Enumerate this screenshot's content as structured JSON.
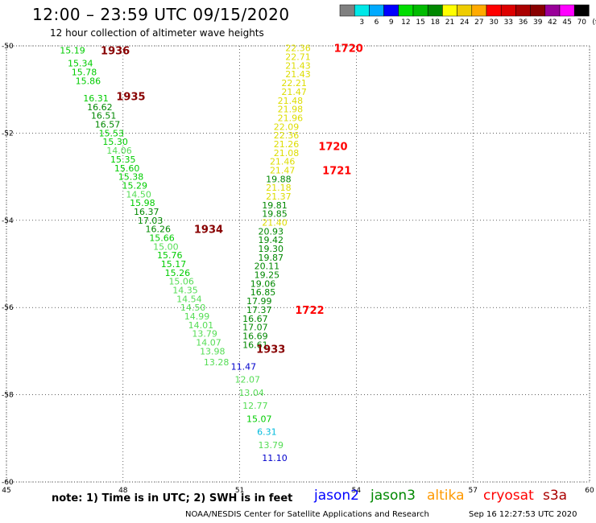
{
  "header": {
    "title": "12:00 – 23:59 UTC 09/15/2020",
    "subtitle": "12 hour collection of altimeter wave heights"
  },
  "colorbar": {
    "unit": "(ft)",
    "bins": [
      {
        "label": "",
        "color": "#808080"
      },
      {
        "label": "3",
        "color": "#00e8e8"
      },
      {
        "label": "6",
        "color": "#00aaff"
      },
      {
        "label": "9",
        "color": "#0000ff"
      },
      {
        "label": "12",
        "color": "#00dd00"
      },
      {
        "label": "15",
        "color": "#00bb00"
      },
      {
        "label": "18",
        "color": "#008800"
      },
      {
        "label": "21",
        "color": "#ffff00"
      },
      {
        "label": "24",
        "color": "#eecc00"
      },
      {
        "label": "27",
        "color": "#ffaa00"
      },
      {
        "label": "30",
        "color": "#ff0000"
      },
      {
        "label": "33",
        "color": "#dd0000"
      },
      {
        "label": "36",
        "color": "#aa0000"
      },
      {
        "label": "39",
        "color": "#880000"
      },
      {
        "label": "42",
        "color": "#990099"
      },
      {
        "label": "45",
        "color": "#ff00ff"
      },
      {
        "label": "70",
        "color": "#000000"
      }
    ]
  },
  "colors": {
    "c3": "#55dd55",
    "c6": "#00cc00",
    "c9": "#008800",
    "cY": "#dddd00",
    "cR": "#ff0000",
    "cM": "#880000",
    "cB": "#0000cc",
    "cC": "#00bbdd"
  },
  "axes": {
    "lon_ticks": [
      45,
      48,
      51,
      54,
      57,
      60
    ],
    "lat_ticks": [
      -50,
      -52,
      -54,
      -56,
      -58,
      -60
    ],
    "lon_range": [
      45,
      60
    ],
    "lat_range": [
      -50,
      -60
    ]
  },
  "chart_data": {
    "type": "scatter",
    "tracks": [
      {
        "name": "track-1",
        "points": [
          {
            "lat": -50.1,
            "lon": 46.7,
            "v": "15.19",
            "c": "c6"
          },
          {
            "lat": -50.4,
            "lon": 46.9,
            "v": "15.34",
            "c": "c6"
          },
          {
            "lat": -50.6,
            "lon": 47.0,
            "v": "15.78",
            "c": "c6"
          },
          {
            "lat": -50.8,
            "lon": 47.1,
            "v": "15.86",
            "c": "c6"
          },
          {
            "lat": -51.2,
            "lon": 47.3,
            "v": "16.31",
            "c": "c6"
          },
          {
            "lat": -51.4,
            "lon": 47.4,
            "v": "16.62",
            "c": "c9"
          },
          {
            "lat": -51.6,
            "lon": 47.5,
            "v": "16.51",
            "c": "c9"
          },
          {
            "lat": -51.8,
            "lon": 47.6,
            "v": "16.57",
            "c": "c9"
          },
          {
            "lat": -52.0,
            "lon": 47.7,
            "v": "15.53",
            "c": "c6"
          },
          {
            "lat": -52.2,
            "lon": 47.8,
            "v": "15.30",
            "c": "c6"
          },
          {
            "lat": -52.4,
            "lon": 47.9,
            "v": "14.06",
            "c": "c3"
          },
          {
            "lat": -52.6,
            "lon": 48.0,
            "v": "15.35",
            "c": "c6"
          },
          {
            "lat": -52.8,
            "lon": 48.1,
            "v": "15.60",
            "c": "c6"
          },
          {
            "lat": -53.0,
            "lon": 48.2,
            "v": "15.38",
            "c": "c6"
          },
          {
            "lat": -53.2,
            "lon": 48.3,
            "v": "15.29",
            "c": "c6"
          },
          {
            "lat": -53.4,
            "lon": 48.4,
            "v": "14.50",
            "c": "c3"
          },
          {
            "lat": -53.6,
            "lon": 48.5,
            "v": "15.98",
            "c": "c6"
          },
          {
            "lat": -53.8,
            "lon": 48.6,
            "v": "16.37",
            "c": "c9"
          },
          {
            "lat": -54.0,
            "lon": 48.7,
            "v": "17.03",
            "c": "c9"
          },
          {
            "lat": -54.2,
            "lon": 48.9,
            "v": "16.26",
            "c": "c9"
          },
          {
            "lat": -54.4,
            "lon": 49.0,
            "v": "15.66",
            "c": "c6"
          },
          {
            "lat": -54.6,
            "lon": 49.1,
            "v": "15.00",
            "c": "c3"
          },
          {
            "lat": -54.8,
            "lon": 49.2,
            "v": "15.76",
            "c": "c6"
          },
          {
            "lat": -55.0,
            "lon": 49.3,
            "v": "15.17",
            "c": "c6"
          },
          {
            "lat": -55.2,
            "lon": 49.4,
            "v": "15.26",
            "c": "c6"
          },
          {
            "lat": -55.4,
            "lon": 49.5,
            "v": "15.06",
            "c": "c3"
          },
          {
            "lat": -55.6,
            "lon": 49.6,
            "v": "14.35",
            "c": "c3"
          },
          {
            "lat": -55.8,
            "lon": 49.7,
            "v": "14.54",
            "c": "c3"
          },
          {
            "lat": -56.0,
            "lon": 49.8,
            "v": "14.50",
            "c": "c3"
          },
          {
            "lat": -56.2,
            "lon": 49.9,
            "v": "14.99",
            "c": "c3"
          },
          {
            "lat": -56.4,
            "lon": 50.0,
            "v": "14.01",
            "c": "c3"
          },
          {
            "lat": -56.6,
            "lon": 50.1,
            "v": "13.79",
            "c": "c3"
          },
          {
            "lat": -56.8,
            "lon": 50.2,
            "v": "14.07",
            "c": "c3"
          },
          {
            "lat": -57.0,
            "lon": 50.3,
            "v": "13.98",
            "c": "c3"
          },
          {
            "lat": -57.25,
            "lon": 50.4,
            "v": "13.28",
            "c": "c3"
          }
        ]
      },
      {
        "name": "track-2",
        "points": [
          {
            "lat": -50.05,
            "lon": 52.5,
            "v": "22.36",
            "c": "cY"
          },
          {
            "lat": -50.25,
            "lon": 52.5,
            "v": "22.71",
            "c": "cY"
          },
          {
            "lat": -50.45,
            "lon": 52.5,
            "v": "21.43",
            "c": "cY"
          },
          {
            "lat": -50.65,
            "lon": 52.5,
            "v": "21.43",
            "c": "cY"
          },
          {
            "lat": -50.85,
            "lon": 52.4,
            "v": "22.21",
            "c": "cY"
          },
          {
            "lat": -51.05,
            "lon": 52.4,
            "v": "21.47",
            "c": "cY"
          },
          {
            "lat": -51.25,
            "lon": 52.3,
            "v": "21.48",
            "c": "cY"
          },
          {
            "lat": -51.45,
            "lon": 52.3,
            "v": "21.98",
            "c": "cY"
          },
          {
            "lat": -51.65,
            "lon": 52.3,
            "v": "21.96",
            "c": "cY"
          },
          {
            "lat": -51.85,
            "lon": 52.2,
            "v": "22.09",
            "c": "cY"
          },
          {
            "lat": -52.05,
            "lon": 52.2,
            "v": "22.36",
            "c": "cY"
          },
          {
            "lat": -52.25,
            "lon": 52.2,
            "v": "21.26",
            "c": "cY"
          },
          {
            "lat": -52.45,
            "lon": 52.2,
            "v": "21.08",
            "c": "cY"
          },
          {
            "lat": -52.65,
            "lon": 52.1,
            "v": "21.46",
            "c": "cY"
          },
          {
            "lat": -52.85,
            "lon": 52.1,
            "v": "21.47",
            "c": "cY"
          },
          {
            "lat": -53.05,
            "lon": 52.0,
            "v": "19.88",
            "c": "c9"
          },
          {
            "lat": -53.25,
            "lon": 52.0,
            "v": "21.18",
            "c": "cY"
          },
          {
            "lat": -53.45,
            "lon": 52.0,
            "v": "21.37",
            "c": "cY"
          },
          {
            "lat": -53.65,
            "lon": 51.9,
            "v": "19.81",
            "c": "c9"
          },
          {
            "lat": -53.85,
            "lon": 51.9,
            "v": "19.85",
            "c": "c9"
          },
          {
            "lat": -54.05,
            "lon": 51.9,
            "v": "21.40",
            "c": "cY"
          },
          {
            "lat": -54.25,
            "lon": 51.8,
            "v": "20.93",
            "c": "c9"
          },
          {
            "lat": -54.45,
            "lon": 51.8,
            "v": "19.42",
            "c": "c9"
          },
          {
            "lat": -54.65,
            "lon": 51.8,
            "v": "19.30",
            "c": "c9"
          },
          {
            "lat": -54.85,
            "lon": 51.8,
            "v": "19.87",
            "c": "c9"
          },
          {
            "lat": -55.05,
            "lon": 51.7,
            "v": "20.11",
            "c": "c9"
          },
          {
            "lat": -55.25,
            "lon": 51.7,
            "v": "19.25",
            "c": "c9"
          },
          {
            "lat": -55.45,
            "lon": 51.6,
            "v": "19.06",
            "c": "c9"
          },
          {
            "lat": -55.65,
            "lon": 51.6,
            "v": "16.85",
            "c": "c9"
          },
          {
            "lat": -55.85,
            "lon": 51.5,
            "v": "17.99",
            "c": "c9"
          },
          {
            "lat": -56.05,
            "lon": 51.5,
            "v": "17.37",
            "c": "c9"
          },
          {
            "lat": -56.25,
            "lon": 51.4,
            "v": "16.67",
            "c": "c9"
          },
          {
            "lat": -56.45,
            "lon": 51.4,
            "v": "17.07",
            "c": "c9"
          },
          {
            "lat": -56.65,
            "lon": 51.4,
            "v": "16.69",
            "c": "c9"
          },
          {
            "lat": -56.85,
            "lon": 51.4,
            "v": "16.61",
            "c": "c9"
          },
          {
            "lat": -57.35,
            "lon": 51.1,
            "v": "11.47",
            "c": "cB"
          },
          {
            "lat": -57.65,
            "lon": 51.2,
            "v": "12.07",
            "c": "c3"
          },
          {
            "lat": -57.95,
            "lon": 51.3,
            "v": "13.04",
            "c": "c3"
          },
          {
            "lat": -58.25,
            "lon": 51.4,
            "v": "12.77",
            "c": "c3"
          },
          {
            "lat": -58.55,
            "lon": 51.5,
            "v": "15.07",
            "c": "c6"
          },
          {
            "lat": -58.85,
            "lon": 51.7,
            "v": "6.31",
            "c": "cC"
          },
          {
            "lat": -59.15,
            "lon": 51.8,
            "v": "13.79",
            "c": "c3"
          },
          {
            "lat": -59.45,
            "lon": 51.9,
            "v": "11.10",
            "c": "cB"
          }
        ]
      }
    ],
    "time_labels": [
      {
        "lat": -50.1,
        "lon": 47.8,
        "text": "1936",
        "c": "cM"
      },
      {
        "lat": -51.15,
        "lon": 48.2,
        "text": "1935",
        "c": "cM"
      },
      {
        "lat": -54.2,
        "lon": 50.2,
        "text": "1934",
        "c": "cM"
      },
      {
        "lat": -56.95,
        "lon": 51.8,
        "text": "1933",
        "c": "cM"
      },
      {
        "lat": -50.05,
        "lon": 53.8,
        "text": "1720",
        "c": "cR"
      },
      {
        "lat": -52.3,
        "lon": 53.4,
        "text": "1720",
        "c": "cR"
      },
      {
        "lat": -52.85,
        "lon": 53.5,
        "text": "1721",
        "c": "cR"
      },
      {
        "lat": -56.05,
        "lon": 52.8,
        "text": "1722",
        "c": "cR"
      }
    ]
  },
  "legend": {
    "note": "note: 1) Time is in UTC; 2) SWH is in feet",
    "missions": [
      {
        "name": "jason2",
        "color": "#0000ff"
      },
      {
        "name": "jason3",
        "color": "#008800"
      },
      {
        "name": "altika",
        "color": "#ff9900"
      },
      {
        "name": "cryosat",
        "color": "#ff0000"
      },
      {
        "name": "s3a",
        "color": "#aa0000"
      }
    ]
  },
  "footer": {
    "credit": "NOAA/NESDIS Center for Satellite Applications and Research",
    "timestamp": "Sep 16 12:27:53 UTC 2020"
  }
}
